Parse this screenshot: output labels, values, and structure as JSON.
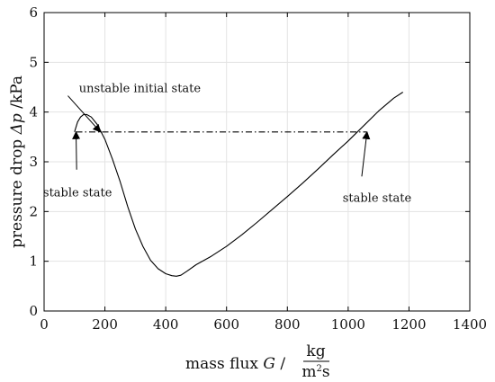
{
  "chart_data": {
    "type": "line",
    "title": "",
    "xlabel": {
      "prefix": "mass flux ",
      "symbol": "G",
      "separator": " /",
      "unit_num": "kg",
      "unit_den_base": "m",
      "unit_den_sup": "2",
      "unit_den_tail": "s"
    },
    "ylabel": {
      "prefix": "pressure drop ",
      "symbol": "Δp",
      "suffix": " /kPa"
    },
    "xlim": [
      0,
      1400
    ],
    "ylim": [
      0,
      6
    ],
    "xticks": [
      0,
      200,
      400,
      600,
      800,
      1000,
      1200,
      1400
    ],
    "yticks": [
      0,
      1,
      2,
      3,
      4,
      5,
      6
    ],
    "grid": true,
    "series": [
      {
        "color": "#000000",
        "style": "solid",
        "x": [
          100,
          110,
          120,
          130,
          140,
          155,
          175,
          200,
          225,
          250,
          275,
          300,
          325,
          350,
          375,
          400,
          420,
          435,
          450,
          470,
          500,
          550,
          600,
          650,
          700,
          750,
          800,
          850,
          900,
          950,
          1000,
          1050,
          1100,
          1150,
          1180
        ],
        "y": [
          3.6,
          3.8,
          3.9,
          3.95,
          3.95,
          3.9,
          3.75,
          3.45,
          3.05,
          2.6,
          2.1,
          1.65,
          1.3,
          1.02,
          0.85,
          0.75,
          0.71,
          0.7,
          0.72,
          0.8,
          0.93,
          1.1,
          1.3,
          1.53,
          1.78,
          2.04,
          2.3,
          2.57,
          2.85,
          3.14,
          3.42,
          3.72,
          4.02,
          4.28,
          4.4
        ]
      },
      {
        "color": "#000000",
        "style": "dashdot",
        "x": [
          105,
          1060
        ],
        "y": [
          3.6,
          3.6
        ]
      }
    ],
    "annotations": [
      {
        "id": "unstable",
        "text": "unstable initial state",
        "point": [
          185,
          3.6
        ],
        "text_anchor_data": [
          315,
          4.4
        ]
      },
      {
        "id": "stable-left",
        "text": "stable state",
        "point": [
          105,
          3.6
        ],
        "text_anchor_data": [
          110,
          2.3
        ]
      },
      {
        "id": "stable-right",
        "text": "stable state",
        "point": [
          1062,
          3.6
        ],
        "text_anchor_data": [
          1095,
          2.2
        ]
      }
    ]
  }
}
